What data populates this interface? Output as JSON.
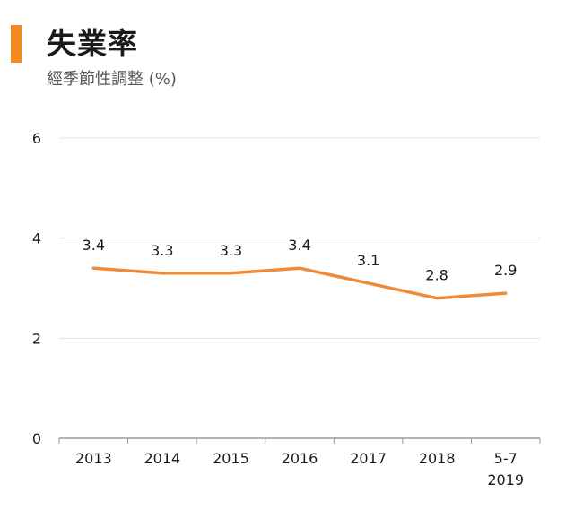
{
  "header": {
    "title": "失業率",
    "subtitle": "經季節性調整 (%)"
  },
  "colors": {
    "accent": "#f28a1e",
    "line": "#ee8b3a",
    "grid": "#e3e3e3",
    "axis": "#999999"
  },
  "chart_data": {
    "type": "line",
    "title": "失業率",
    "subtitle": "經季節性調整 (%)",
    "xlabel": "",
    "ylabel": "",
    "categories": [
      [
        "2013"
      ],
      [
        "2014"
      ],
      [
        "2015"
      ],
      [
        "2016"
      ],
      [
        "2017"
      ],
      [
        "2018"
      ],
      [
        "5-7",
        "2019"
      ]
    ],
    "series": [
      {
        "values": [
          3.4,
          3.3,
          3.3,
          3.4,
          3.1,
          2.8,
          2.9
        ]
      }
    ],
    "data_labels": [
      "3.4",
      "3.3",
      "3.3",
      "3.4",
      "3.1",
      "2.8",
      "2.9"
    ],
    "yticks": [
      0,
      2,
      4,
      6
    ],
    "ylim": [
      0,
      6
    ],
    "grid": true,
    "legend": "none"
  }
}
